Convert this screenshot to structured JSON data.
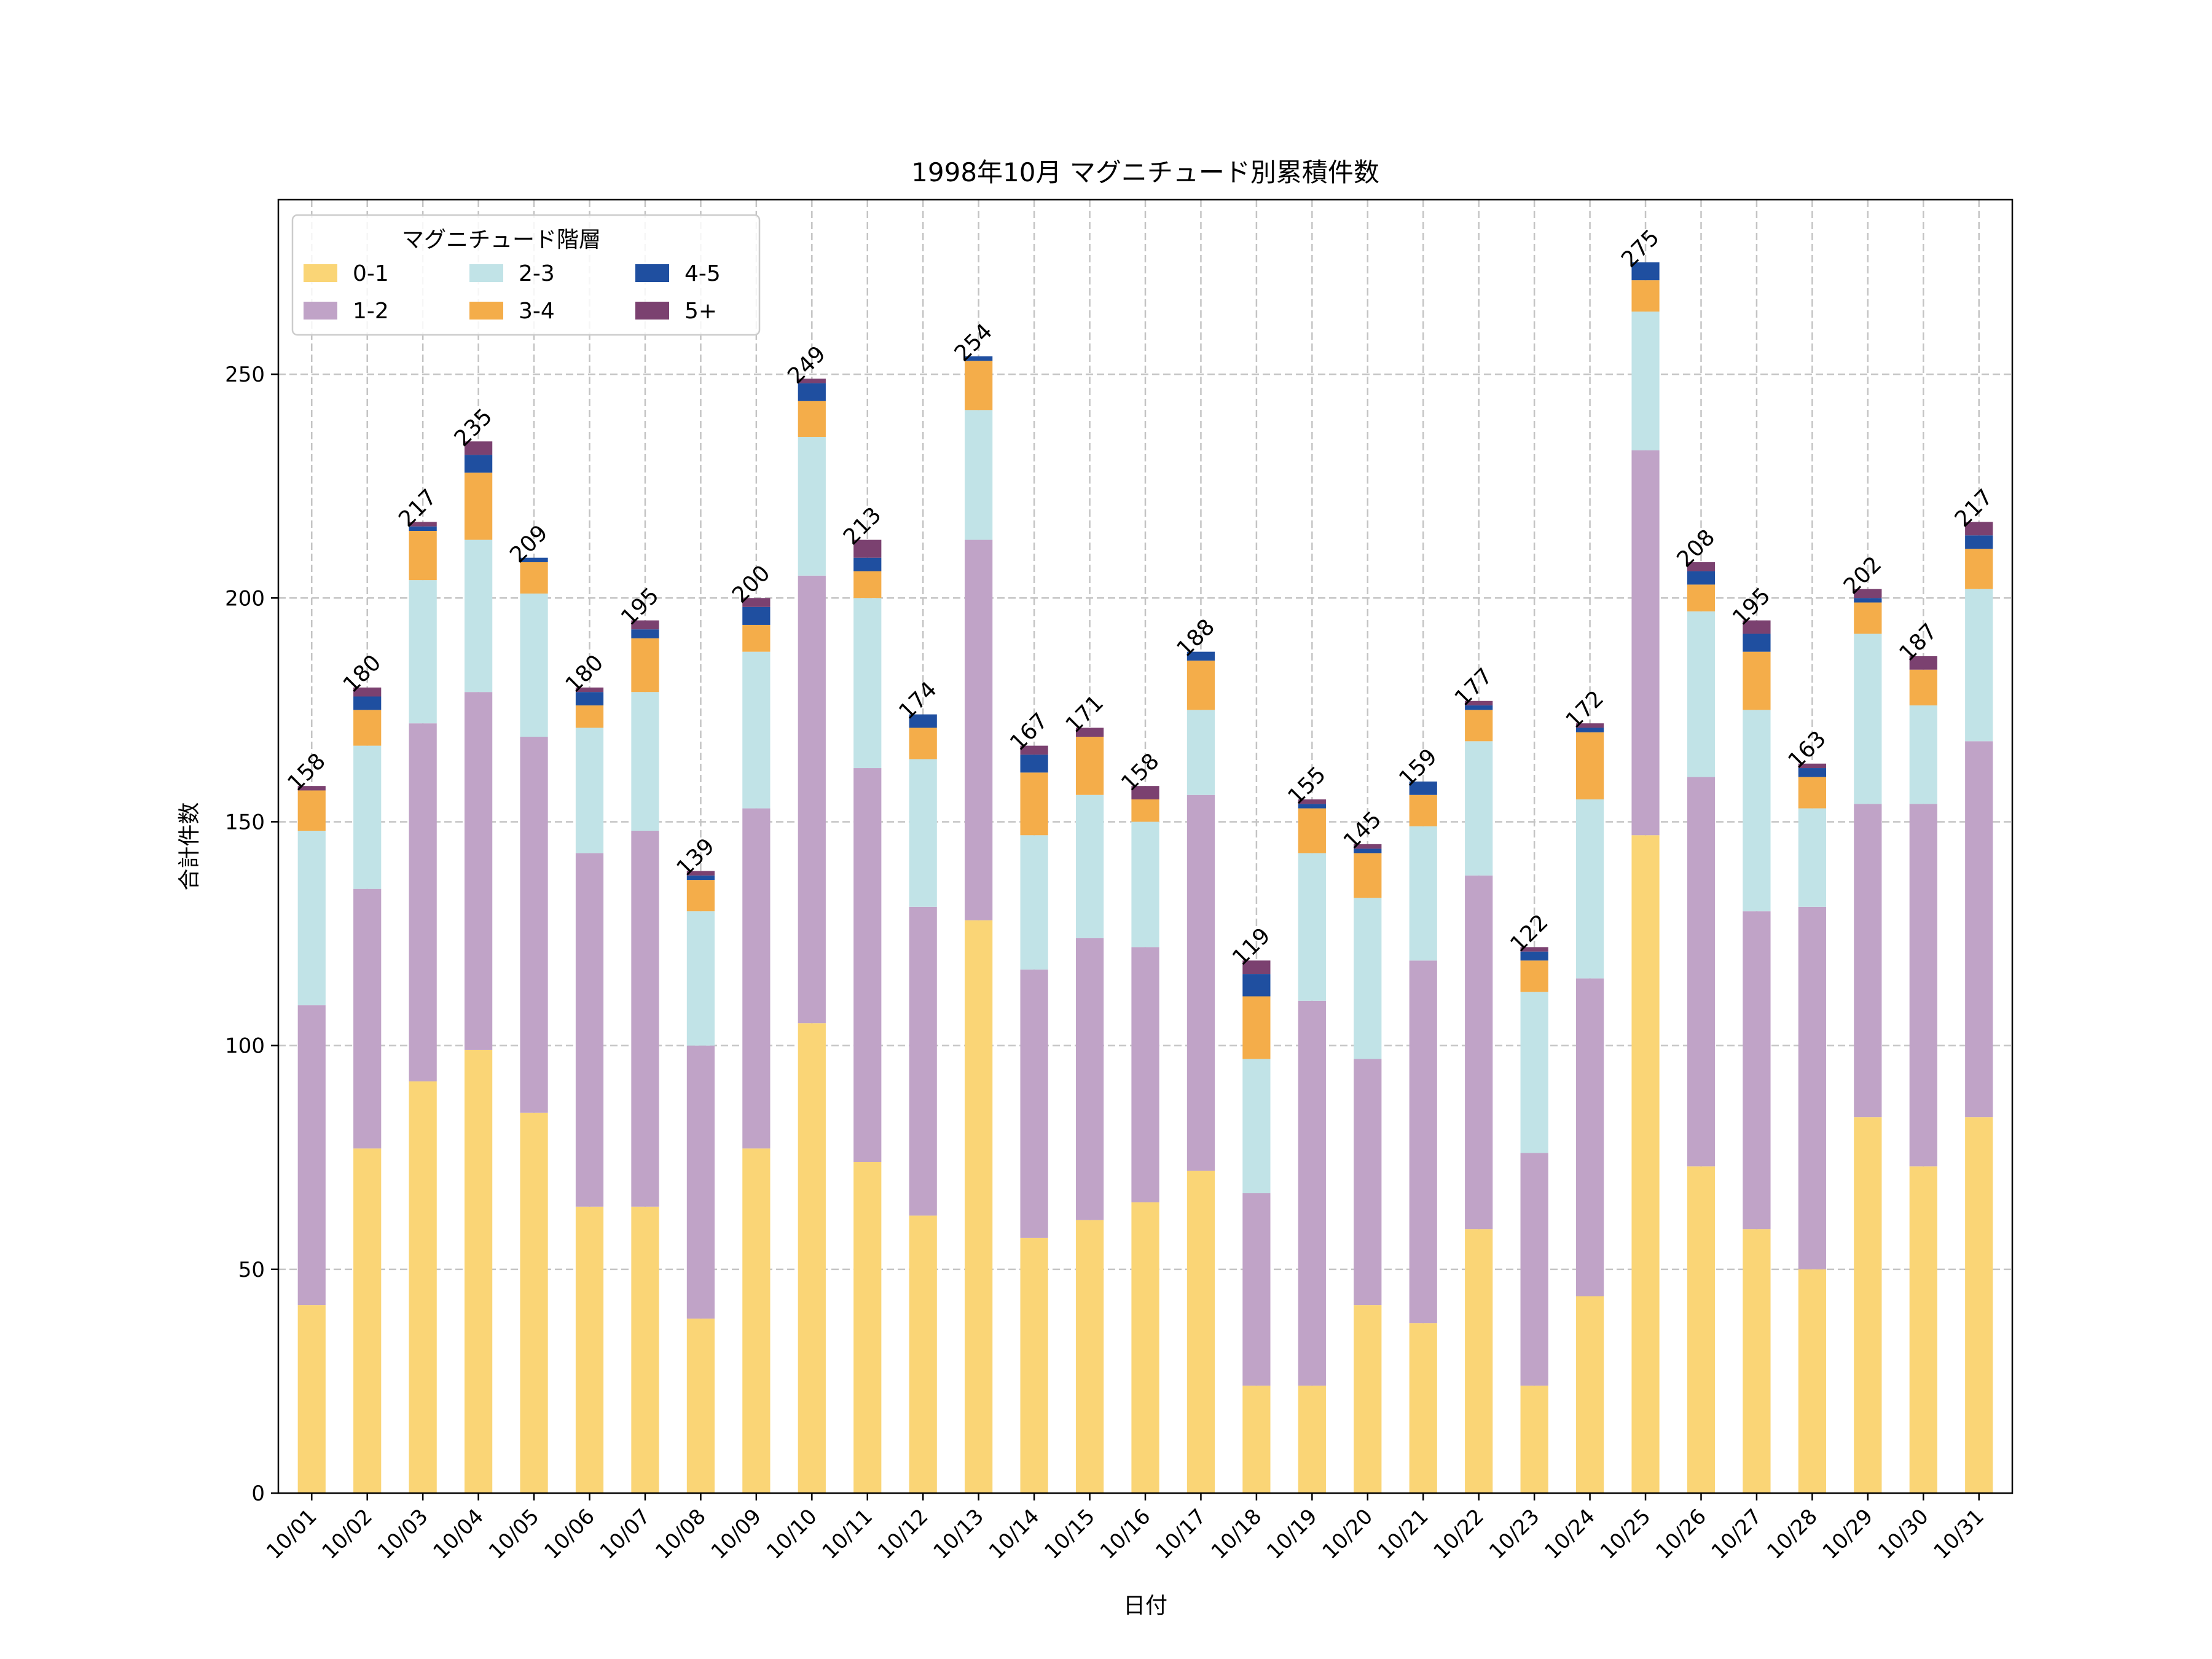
{
  "chart_data": {
    "type": "bar",
    "stacked": true,
    "title": "1998年10月 マグニチュード別累積件数",
    "xlabel": "日付",
    "ylabel": "合計件数",
    "ylim": [
      0,
      289
    ],
    "yticks": [
      0,
      50,
      100,
      150,
      200,
      250
    ],
    "grid": true,
    "legend": {
      "title": "マグニチュード階層",
      "position": "top-left",
      "columns": 3
    },
    "categories": [
      "10/01",
      "10/02",
      "10/03",
      "10/04",
      "10/05",
      "10/06",
      "10/07",
      "10/08",
      "10/09",
      "10/10",
      "10/11",
      "10/12",
      "10/13",
      "10/14",
      "10/15",
      "10/16",
      "10/17",
      "10/18",
      "10/19",
      "10/20",
      "10/21",
      "10/22",
      "10/23",
      "10/24",
      "10/25",
      "10/26",
      "10/27",
      "10/28",
      "10/29",
      "10/30",
      "10/31"
    ],
    "series": [
      {
        "name": "0-1",
        "color": "#FAD576",
        "values": [
          42,
          77,
          92,
          99,
          85,
          64,
          64,
          39,
          77,
          105,
          74,
          62,
          128,
          57,
          61,
          65,
          72,
          24,
          24,
          42,
          38,
          59,
          24,
          44,
          147,
          73,
          59,
          50,
          84,
          73,
          84
        ]
      },
      {
        "name": "1-2",
        "color": "#C0A3C7",
        "values": [
          67,
          58,
          80,
          80,
          84,
          79,
          84,
          61,
          76,
          100,
          88,
          69,
          85,
          60,
          63,
          57,
          84,
          43,
          86,
          55,
          81,
          79,
          52,
          71,
          86,
          87,
          71,
          81,
          70,
          81,
          84
        ]
      },
      {
        "name": "2-3",
        "color": "#C1E3E7",
        "values": [
          39,
          32,
          32,
          34,
          32,
          28,
          31,
          30,
          35,
          31,
          38,
          33,
          29,
          30,
          32,
          28,
          19,
          30,
          33,
          36,
          30,
          30,
          36,
          40,
          31,
          37,
          45,
          22,
          38,
          22,
          34
        ]
      },
      {
        "name": "3-4",
        "color": "#F4AD4A",
        "values": [
          9,
          8,
          11,
          15,
          7,
          5,
          12,
          7,
          6,
          8,
          6,
          7,
          11,
          14,
          13,
          5,
          11,
          14,
          10,
          10,
          7,
          7,
          7,
          15,
          7,
          6,
          13,
          7,
          7,
          8,
          9
        ]
      },
      {
        "name": "4-5",
        "color": "#1F4FA0",
        "values": [
          0,
          3,
          1,
          4,
          1,
          3,
          2,
          1,
          4,
          4,
          3,
          3,
          1,
          4,
          0,
          0,
          2,
          5,
          1,
          1,
          3,
          1,
          2,
          1,
          4,
          3,
          4,
          2,
          1,
          0,
          3
        ]
      },
      {
        "name": "5+",
        "color": "#7B4170",
        "values": [
          1,
          2,
          1,
          3,
          0,
          1,
          2,
          1,
          2,
          1,
          4,
          0,
          0,
          2,
          2,
          3,
          0,
          3,
          1,
          1,
          0,
          1,
          1,
          1,
          0,
          2,
          3,
          1,
          2,
          3,
          3
        ]
      }
    ],
    "totals": [
      158,
      180,
      217,
      235,
      209,
      180,
      195,
      139,
      200,
      249,
      213,
      174,
      254,
      167,
      171,
      158,
      188,
      119,
      155,
      145,
      159,
      177,
      122,
      172,
      275,
      208,
      195,
      163,
      202,
      187,
      217
    ]
  }
}
